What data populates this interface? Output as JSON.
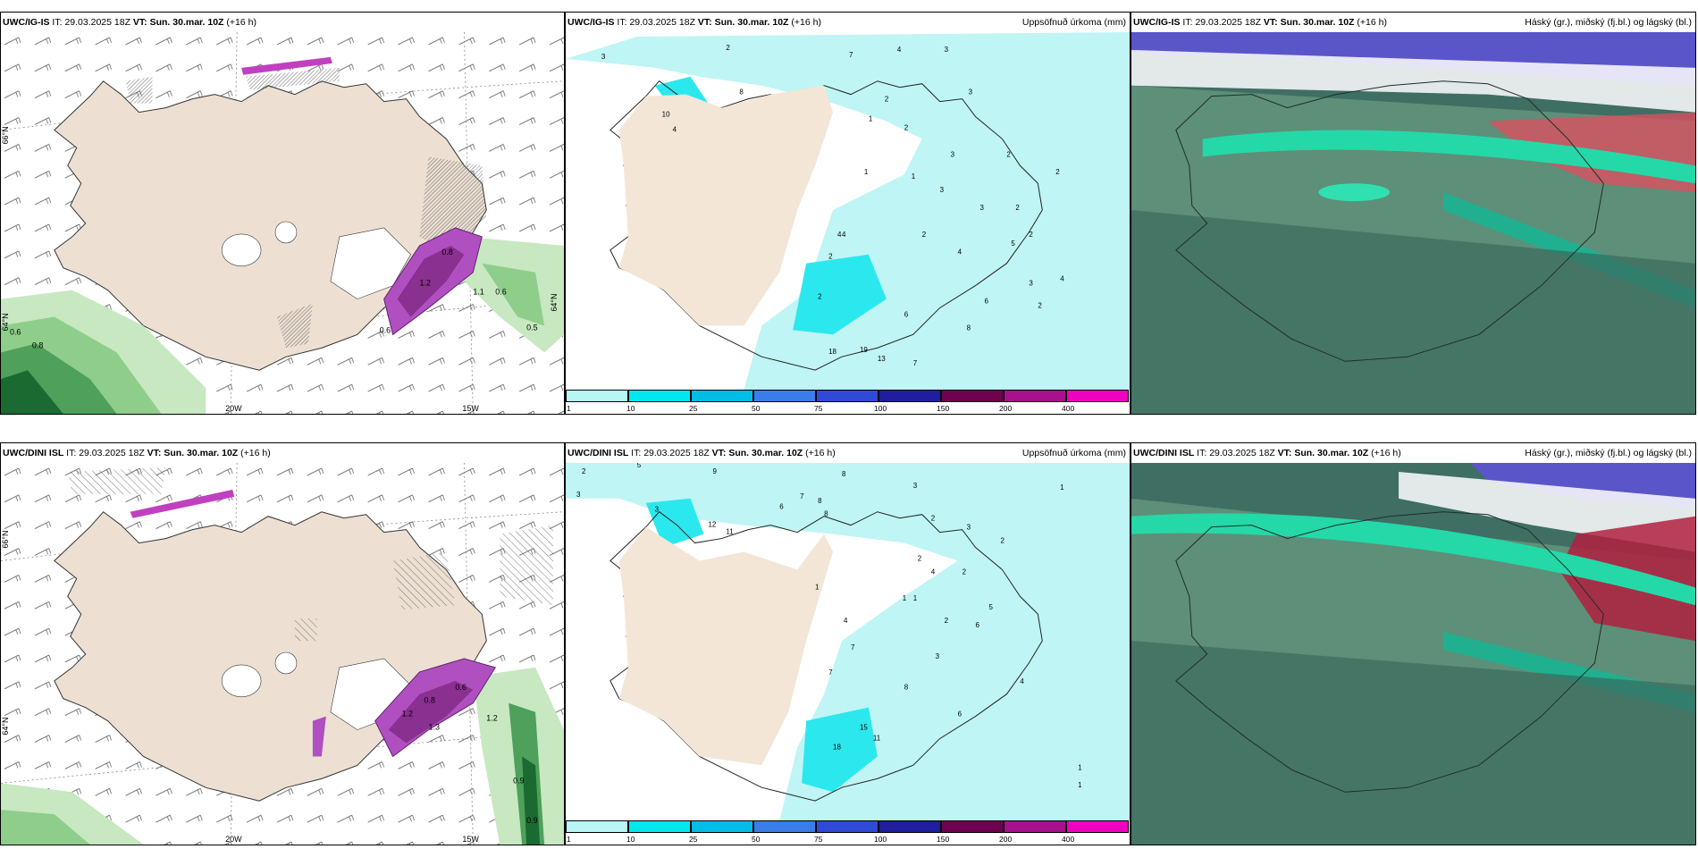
{
  "panels": {
    "p1": {
      "model": "UWC/IG-IS",
      "issue_prefix": "IT:",
      "issue": "29.03.2025 18Z",
      "valid_prefix": "VT:",
      "valid": "Sun. 30.mar. 10Z",
      "lead": "(+16 h)",
      "right_title": ""
    },
    "p2": {
      "model": "UWC/IG-IS",
      "issue_prefix": "IT:",
      "issue": "29.03.2025 18Z",
      "valid_prefix": "VT:",
      "valid": "Sun. 30.mar. 10Z",
      "lead": "(+16 h)",
      "right_title": "Uppsöfnuð úrkoma (mm)"
    },
    "p3": {
      "model": "UWC/IG-IS",
      "issue_prefix": "IT:",
      "issue": "29.03.2025 18Z",
      "valid_prefix": "VT:",
      "valid": "Sun. 30.mar. 10Z",
      "lead": "(+16 h)",
      "right_title": "Háský (gr.), miðský (fj.bl.) og lágský (bl.)"
    },
    "p4": {
      "model": "UWC/DINI ISL",
      "issue_prefix": "IT:",
      "issue": "29.03.2025 18Z",
      "valid_prefix": "VT:",
      "valid": "Sun. 30.mar. 10Z",
      "lead": "(+16 h)",
      "right_title": ""
    },
    "p5": {
      "model": "UWC/DINI ISL",
      "issue_prefix": "IT:",
      "issue": "29.03.2025 18Z",
      "valid_prefix": "VT:",
      "valid": "Sun. 30.mar. 10Z",
      "lead": "(+16 h)",
      "right_title": "Uppsöfnuð úrkoma (mm)"
    },
    "p6": {
      "model": "UWC/DINI ISL",
      "issue_prefix": "IT:",
      "issue": "29.03.2025 18Z",
      "valid_prefix": "VT:",
      "valid": "Sun. 30.mar. 10Z",
      "lead": "(+16 h)",
      "right_title": "Háský (gr.), miðský (fj.bl.) og lágský (bl.)"
    }
  },
  "axes": {
    "lat_66": "66°N",
    "lat_64": "64°N",
    "lon_20": "20W",
    "lon_15": "15W"
  },
  "precip_colorbar": {
    "ticks": [
      "1",
      "10",
      "25",
      "50",
      "75",
      "100",
      "150",
      "200",
      "400"
    ],
    "colors": [
      "#b8f6f6",
      "#00e8ee",
      "#00bde8",
      "#3a7de8",
      "#2f4ad8",
      "#1e1e9e",
      "#700050",
      "#a8108c",
      "#f000c0",
      "#f4b4f4"
    ]
  },
  "precip_labels_top": [
    "3",
    "2",
    "7",
    "4",
    "3",
    "8",
    "10",
    "4",
    "2",
    "3",
    "3",
    "2",
    "1",
    "2",
    "3",
    "3",
    "2",
    "1",
    "1",
    "4",
    "2",
    "2",
    "2",
    "5",
    "6",
    "19",
    "18",
    "13",
    "7",
    "8",
    "3",
    "2",
    "4",
    "4",
    "2",
    "2",
    "6",
    "4"
  ],
  "precip_labels_bottom": [
    "2",
    "5",
    "9",
    "3",
    "3",
    "8",
    "8",
    "12",
    "6",
    "7",
    "8",
    "11",
    "3",
    "2",
    "3",
    "2",
    "2",
    "1",
    "1",
    "2",
    "1",
    "4",
    "4",
    "5",
    "6",
    "7",
    "7",
    "15",
    "18",
    "11",
    "6",
    "4",
    "8",
    "3",
    "2",
    "1",
    "1",
    "1"
  ],
  "snow_labels_top": [
    "0.6",
    "0.5",
    "0.8",
    "0.6",
    "0.8",
    "1.1",
    "1.2",
    "0.6"
  ],
  "snow_labels_bottom": [
    "0.9",
    "0.9",
    "1.2",
    "0.8",
    "1.2",
    "1.3",
    "0.6"
  ]
}
